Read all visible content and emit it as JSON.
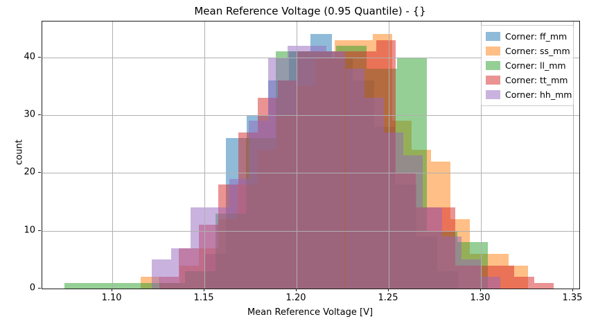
{
  "window": {
    "background": "#ffffff"
  },
  "chart_data": {
    "type": "bar",
    "subtype": "overlapping-histograms",
    "title": "Mean Reference Voltage (0.95 Quantile) - {}",
    "xlabel": "Mean Reference Voltage [V]",
    "ylabel": "count",
    "xlim": [
      1.062,
      1.3534
    ],
    "ylim": [
      0,
      46.2
    ],
    "xticks": [
      1.1,
      1.15,
      1.2,
      1.25,
      1.3,
      1.35
    ],
    "xtick_labels": [
      "1.10",
      "1.15",
      "1.20",
      "1.25",
      "1.30",
      "1.35"
    ],
    "yticks": [
      0,
      10,
      20,
      30,
      40
    ],
    "ytick_labels": [
      "0",
      "10",
      "20",
      "30",
      "40"
    ],
    "grid": true,
    "grid_color": "#b0b0b0",
    "legend_position": "upper right",
    "bar_alpha": 0.5,
    "series": [
      {
        "name": "ff_mm",
        "legend_label": "Corner: ff_mm",
        "color": "#1f77b4",
        "bin_edges": [
          1.15,
          1.1615,
          1.173,
          1.1845,
          1.196,
          1.2075,
          1.219,
          1.2305,
          1.242,
          1.2535,
          1.265,
          1.2765,
          1.288
        ],
        "counts": [
          6,
          26,
          30,
          36,
          41,
          44,
          40,
          36,
          28,
          18,
          9,
          3
        ]
      },
      {
        "name": "ss_mm",
        "legend_label": "Corner: ss_mm",
        "color": "#ff7f0e",
        "bin_edges": [
          1.1155,
          1.126,
          1.1365,
          1.147,
          1.1575,
          1.168,
          1.1785,
          1.189,
          1.1995,
          1.21,
          1.2205,
          1.231,
          1.2415,
          1.252,
          1.2625,
          1.273,
          1.2835,
          1.294,
          1.3045,
          1.315,
          1.3255
        ],
        "counts": [
          2,
          1,
          4,
          7,
          12,
          18,
          24,
          30,
          35,
          40,
          43,
          43,
          44,
          29,
          24,
          22,
          12,
          6,
          6,
          4
        ]
      },
      {
        "name": "ll_mm",
        "legend_label": "Corner: ll_mm",
        "color": "#2ca02c",
        "bin_edges": [
          1.074,
          1.0904,
          1.1068,
          1.1232,
          1.1396,
          1.156,
          1.1724,
          1.1888,
          1.2052,
          1.2216,
          1.238,
          1.2544,
          1.2708,
          1.2872,
          1.3036
        ],
        "counts": [
          1,
          1,
          1,
          1,
          3,
          13,
          26,
          41,
          41,
          42,
          38,
          40,
          10,
          8
        ]
      },
      {
        "name": "tt_mm",
        "legend_label": "Corner: tt_mm",
        "color": "#d62728",
        "bin_edges": [
          1.1255,
          1.1362,
          1.1469,
          1.1576,
          1.1683,
          1.179,
          1.1897,
          1.2004,
          1.2111,
          1.2218,
          1.2325,
          1.2432,
          1.2539,
          1.2646,
          1.2753,
          1.286,
          1.2967,
          1.3074,
          1.3181,
          1.3288,
          1.3395
        ],
        "counts": [
          2,
          7,
          11,
          18,
          27,
          33,
          36,
          41,
          41,
          41,
          41,
          43,
          20,
          14,
          14,
          4,
          4,
          4,
          2,
          1
        ]
      },
      {
        "name": "hh_mm",
        "legend_label": "Corner: hh_mm",
        "color": "#9467bd",
        "bin_edges": [
          1.1215,
          1.132,
          1.1425,
          1.153,
          1.1635,
          1.174,
          1.1845,
          1.195,
          1.2055,
          1.216,
          1.2265,
          1.237,
          1.2475,
          1.258,
          1.2685,
          1.279,
          1.2895,
          1.3,
          1.3105
        ],
        "counts": [
          5,
          7,
          14,
          14,
          19,
          29,
          40,
          42,
          42,
          41,
          38,
          33,
          27,
          23,
          14,
          9,
          5,
          2
        ]
      }
    ]
  }
}
